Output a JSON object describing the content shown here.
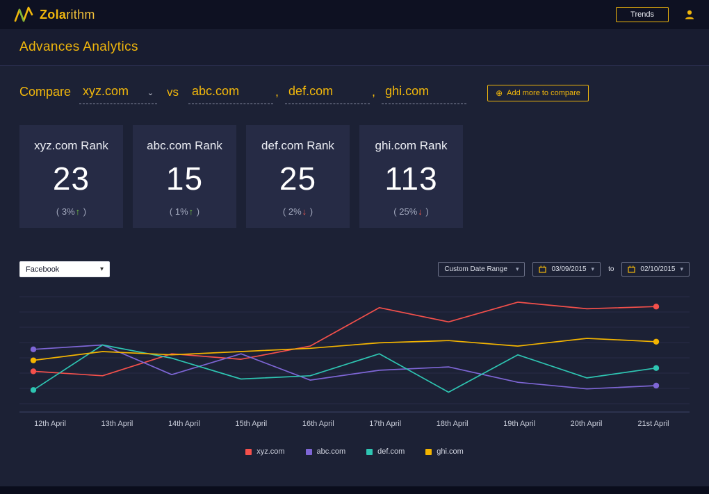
{
  "icons": {
    "chevron_down": "▾",
    "chevron_small": "⌄",
    "circle_plus": "⊕"
  },
  "topbar": {
    "logo_primary": "Zola",
    "logo_secondary": "rithm",
    "trends_button": "Trends"
  },
  "header": {
    "title": "Advances Analytics"
  },
  "compare": {
    "label": "Compare",
    "primary_domain": "xyz.com",
    "vs_label": "vs",
    "comma": ",",
    "competitors": [
      "abc.com",
      "def.com",
      "ghi.com"
    ],
    "add_button": "Add more to compare"
  },
  "rank_cards": [
    {
      "title": "xyz.com Rank",
      "rank": "23",
      "change_open": "( ",
      "change_value": "3%",
      "arrow": "↑",
      "change_close": " )",
      "direction": "up"
    },
    {
      "title": "abc.com Rank",
      "rank": "15",
      "change_open": "( ",
      "change_value": "1%",
      "arrow": "↑",
      "change_close": " )",
      "direction": "up"
    },
    {
      "title": "def.com Rank",
      "rank": "25",
      "change_open": "( ",
      "change_value": "2%",
      "arrow": "↓",
      "change_close": " )",
      "direction": "down"
    },
    {
      "title": "ghi.com Rank",
      "rank": "113",
      "change_open": "( ",
      "change_value": "25%",
      "arrow": "↓",
      "change_close": " )",
      "direction": "down"
    }
  ],
  "filters": {
    "network_select": "Facebook",
    "date_range_select": "Custom Date Range",
    "date_from": "03/09/2015",
    "to_label": "to",
    "date_to": "02/10/2015"
  },
  "chart_data": {
    "type": "line",
    "title": "",
    "xlabel": "",
    "ylabel": "",
    "x": [
      "12th April",
      "13th April",
      "14th April",
      "15th April",
      "16th April",
      "17th April",
      "18th April",
      "19th April",
      "20th April",
      "21st April"
    ],
    "ylim": [
      0,
      100
    ],
    "grid": true,
    "legend_position": "bottom",
    "series": [
      {
        "name": "xyz.com",
        "color": "#f4504b",
        "values": [
          32,
          28,
          48,
          43,
          55,
          90,
          77,
          95,
          89,
          91
        ]
      },
      {
        "name": "abc.com",
        "color": "#7e66d6",
        "values": [
          52,
          56,
          29,
          48,
          24,
          33,
          36,
          22,
          16,
          19
        ]
      },
      {
        "name": "def.com",
        "color": "#2ec5b2",
        "values": [
          15,
          56,
          44,
          25,
          28,
          48,
          13,
          47,
          26,
          35
        ]
      },
      {
        "name": "ghi.com",
        "color": "#f3b400",
        "values": [
          42,
          50,
          47,
          50,
          53,
          58,
          60,
          55,
          62,
          59
        ]
      }
    ]
  },
  "colors": {
    "accent": "#f1b70c",
    "positive": "#72c043",
    "negative": "#e4574e",
    "background": "#1c2135",
    "card_background": "#262b45"
  }
}
